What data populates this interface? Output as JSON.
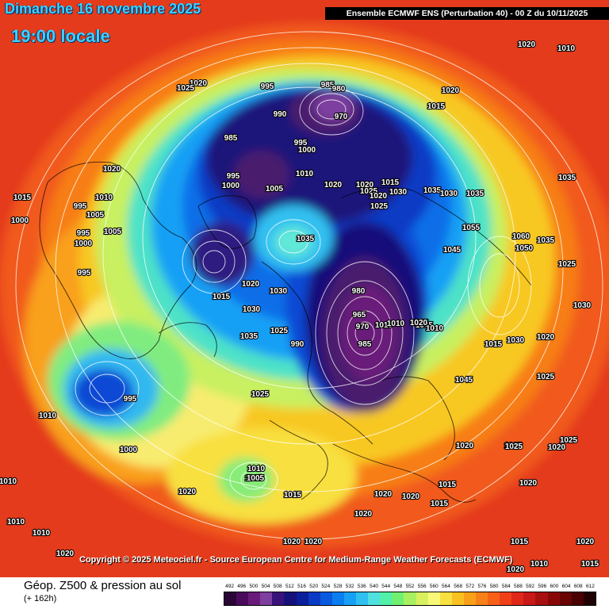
{
  "header": {
    "date": "Dimanche 16 novembre 2025",
    "local_time": "19:00 locale",
    "model": "Ensemble ECMWF ENS  (Perturbation 40)  -  00 Z du 10/11/2025"
  },
  "copyright": "Copyright © 2025 Meteociel.fr - Source European Centre for Medium-Range Weather Forecasts (ECMWF)",
  "footer": {
    "title": "Géop. Z500 & pression au sol",
    "subtitle": "(+ 162h)"
  },
  "scale": {
    "ticks": [
      "492",
      "496",
      "500",
      "504",
      "508",
      "512",
      "516",
      "520",
      "524",
      "528",
      "532",
      "536",
      "540",
      "544",
      "548",
      "552",
      "556",
      "560",
      "564",
      "568",
      "572",
      "576",
      "580",
      "584",
      "588",
      "592",
      "596",
      "600",
      "604",
      "608",
      "612"
    ],
    "colors": [
      "#2a0535",
      "#4a0a5c",
      "#6a1a7a",
      "#7e3fa0",
      "#3a137a",
      "#16107a",
      "#0a1f9a",
      "#0a3ac4",
      "#0a5ae0",
      "#0a7ef0",
      "#18a0f5",
      "#30c0f0",
      "#50e0e0",
      "#50f0a8",
      "#70f070",
      "#a8f060",
      "#d8f060",
      "#f8f878",
      "#f8e040",
      "#f8c020",
      "#f8a018",
      "#f88018",
      "#f86018",
      "#f04018",
      "#e02818",
      "#c81818",
      "#a81010",
      "#880808",
      "#680404",
      "#480000",
      "#200000"
    ]
  },
  "pressure_labels": [
    "1020",
    "1025",
    "995",
    "985",
    "980",
    "970",
    "990",
    "995",
    "1000",
    "1015",
    "1020",
    "1010",
    "985",
    "995",
    "1000",
    "1005",
    "1020",
    "1025",
    "1030",
    "1035",
    "1030",
    "1035",
    "1010",
    "1020",
    "1025",
    "1015",
    "1020",
    "1020",
    "1015",
    "1000",
    "995",
    "1010",
    "1005",
    "995",
    "1000",
    "995",
    "1005",
    "1020",
    "1015",
    "1030",
    "1035",
    "1030",
    "1035",
    "1025",
    "990",
    "980",
    "965",
    "970",
    "985",
    "1010",
    "1015",
    "1010",
    "1015",
    "1010",
    "1020",
    "1045",
    "1055",
    "1060",
    "1050",
    "1035",
    "1045",
    "1025",
    "1030",
    "1025",
    "1015",
    "1020",
    "1025",
    "1035",
    "1020",
    "1030",
    "1025",
    "1020",
    "1025",
    "1020",
    "1020",
    "1005",
    "995",
    "1010",
    "1000",
    "1025",
    "1010",
    "1005",
    "1015",
    "1020",
    "1010",
    "1010",
    "1010",
    "1020",
    "1020",
    "1020",
    "1020",
    "1020",
    "1020",
    "1015",
    "1015",
    "1015",
    "1020",
    "1015",
    "1010",
    "1020"
  ]
}
